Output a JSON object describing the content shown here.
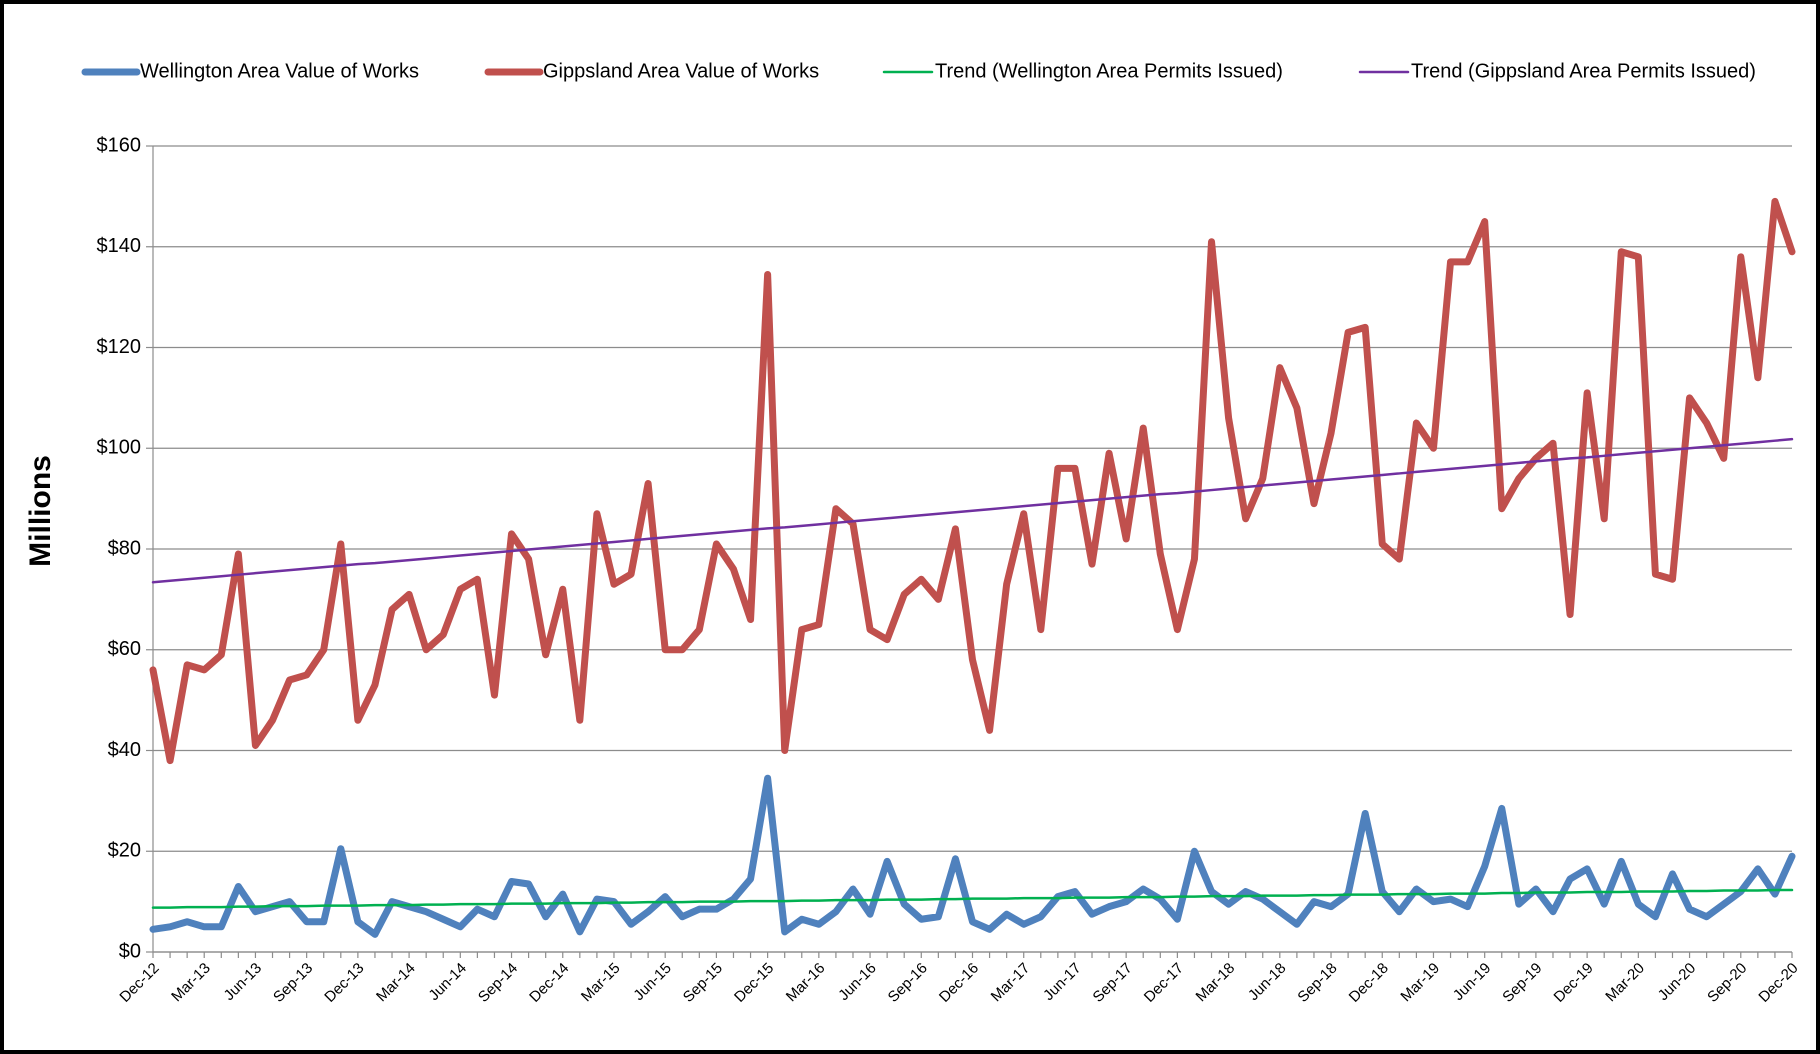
{
  "chart_data": {
    "type": "line",
    "y_label": "Millions",
    "ylim": [
      0,
      160
    ],
    "yticks": [
      {
        "value": 0,
        "label": "$0"
      },
      {
        "value": 20,
        "label": "$20"
      },
      {
        "value": 40,
        "label": "$40"
      },
      {
        "value": 60,
        "label": "$60"
      },
      {
        "value": 80,
        "label": "$80"
      },
      {
        "value": 100,
        "label": "$100"
      },
      {
        "value": 120,
        "label": "$120"
      },
      {
        "value": 140,
        "label": "$140"
      },
      {
        "value": 160,
        "label": "$160"
      }
    ],
    "grid": true,
    "legend": "top",
    "categories": [
      "Dec-12",
      null,
      null,
      "Mar-13",
      null,
      null,
      "Jun-13",
      null,
      null,
      "Sep-13",
      null,
      null,
      "Dec-13",
      null,
      null,
      "Mar-14",
      null,
      null,
      "Jun-14",
      null,
      null,
      "Sep-14",
      null,
      null,
      "Dec-14",
      null,
      null,
      "Mar-15",
      null,
      null,
      "Jun-15",
      null,
      null,
      "Sep-15",
      null,
      null,
      "Dec-15",
      null,
      null,
      "Mar-16",
      null,
      null,
      "Jun-16",
      null,
      null,
      "Sep-16",
      null,
      null,
      "Dec-16",
      null,
      null,
      "Mar-17",
      null,
      null,
      "Jun-17",
      null,
      null,
      "Sep-17",
      null,
      null,
      "Dec-17",
      null,
      null,
      "Mar-18",
      null,
      null,
      "Jun-18",
      null,
      null,
      "Sep-18",
      null,
      null,
      "Dec-18",
      null,
      null,
      "Mar-19",
      null,
      null,
      "Jun-19",
      null,
      null,
      "Sep-19",
      null,
      null,
      "Dec-19",
      null,
      null,
      "Mar-20",
      null,
      null,
      "Jun-20",
      null,
      null,
      "Sep-20",
      null,
      null,
      "Dec-20"
    ],
    "series": [
      {
        "name": "Wellington Area Value of Works",
        "color": "#4f81bd",
        "width": 7,
        "values": [
          4.5,
          5,
          6,
          5,
          5,
          13,
          8,
          9,
          10,
          6,
          6,
          20.5,
          6,
          3.5,
          10,
          9,
          8,
          6.5,
          5,
          8.5,
          7,
          14,
          13.5,
          7,
          11.5,
          4,
          10.5,
          10,
          5.5,
          8,
          11,
          7,
          8.5,
          8.5,
          10.5,
          14.5,
          34.5,
          4,
          6.5,
          5.5,
          8,
          12.5,
          7.5,
          18,
          9.5,
          6.5,
          7,
          18.5,
          6,
          4.5,
          7.5,
          5.5,
          7,
          11,
          12,
          7.5,
          9,
          10,
          12.5,
          10.5,
          6.5,
          20,
          12,
          9.5,
          12,
          10.5,
          8,
          5.5,
          10,
          9,
          11.5,
          27.5,
          12,
          8,
          12.5,
          10,
          10.5,
          9,
          17,
          28.5,
          9.5,
          12.5,
          8,
          14.5,
          16.5,
          9.5,
          18,
          9.5,
          7,
          15.5,
          8.5,
          7,
          9.5,
          12,
          16.5,
          11.5,
          19
        ]
      },
      {
        "name": "Gippsland Area Value of Works",
        "color": "#c0504d",
        "width": 7,
        "values": [
          56,
          38,
          57,
          56,
          59,
          79,
          41,
          46,
          54,
          55,
          60,
          81,
          46,
          53,
          68,
          71,
          60,
          63,
          72,
          74,
          51,
          83,
          78,
          59,
          72,
          46,
          87,
          73,
          75,
          93,
          60,
          60,
          64,
          81,
          76,
          66,
          134.5,
          40,
          64,
          65,
          88,
          85,
          64,
          62,
          71,
          74,
          70,
          84,
          58,
          44,
          73,
          87,
          64,
          96,
          96,
          77,
          99,
          82,
          104,
          79,
          64,
          78,
          141,
          106,
          86,
          94,
          116,
          108,
          89,
          103,
          123,
          124,
          81,
          78,
          105,
          100,
          137,
          137,
          145,
          88,
          94,
          98,
          101,
          67,
          111,
          86,
          139,
          138,
          75,
          74,
          110,
          105,
          98,
          138,
          114,
          149,
          139
        ]
      },
      {
        "name": "Trend (Wellington Area Permits Issued)",
        "color": "#00b050",
        "width": 2.5,
        "values": [
          8.8,
          8.8,
          8.9,
          8.9,
          8.9,
          9.0,
          9.0,
          9.1,
          9.1,
          9.1,
          9.2,
          9.2,
          9.2,
          9.3,
          9.3,
          9.3,
          9.4,
          9.4,
          9.5,
          9.5,
          9.5,
          9.6,
          9.6,
          9.6,
          9.7,
          9.7,
          9.7,
          9.8,
          9.8,
          9.9,
          9.9,
          9.9,
          10.0,
          10.0,
          10.0,
          10.1,
          10.1,
          10.1,
          10.2,
          10.2,
          10.3,
          10.3,
          10.3,
          10.4,
          10.4,
          10.4,
          10.5,
          10.5,
          10.6,
          10.6,
          10.6,
          10.7,
          10.7,
          10.7,
          10.8,
          10.8,
          10.8,
          10.9,
          10.9,
          10.9,
          11.0,
          11.0,
          11.1,
          11.1,
          11.1,
          11.2,
          11.2,
          11.2,
          11.3,
          11.3,
          11.4,
          11.4,
          11.4,
          11.5,
          11.5,
          11.5,
          11.6,
          11.6,
          11.6,
          11.7,
          11.7,
          11.8,
          11.8,
          11.8,
          11.9,
          11.9,
          11.9,
          12.0,
          12.0,
          12.0,
          12.1,
          12.1,
          12.2,
          12.2,
          12.2,
          12.3,
          12.3
        ]
      },
      {
        "name": "Trend (Gippsland Area Permits Issued)",
        "color": "#7030a0",
        "width": 2.5,
        "values": [
          73.4,
          73.7,
          74.0,
          74.3,
          74.6,
          74.9,
          75.2,
          75.5,
          75.8,
          76.1,
          76.4,
          76.7,
          77.0,
          77.2,
          77.5,
          77.8,
          78.1,
          78.4,
          78.7,
          79.0,
          79.3,
          79.6,
          79.9,
          80.2,
          80.5,
          80.8,
          81.1,
          81.4,
          81.7,
          82.0,
          82.3,
          82.6,
          82.9,
          83.2,
          83.5,
          83.8,
          84.1,
          84.3,
          84.6,
          84.9,
          85.2,
          85.5,
          85.8,
          86.1,
          86.4,
          86.7,
          87.0,
          87.3,
          87.6,
          87.9,
          88.2,
          88.5,
          88.8,
          89.1,
          89.4,
          89.7,
          90.0,
          90.3,
          90.6,
          90.9,
          91.1,
          91.4,
          91.7,
          92.0,
          92.3,
          92.6,
          92.9,
          93.2,
          93.5,
          93.8,
          94.1,
          94.4,
          94.7,
          95.0,
          95.3,
          95.6,
          95.9,
          96.2,
          96.5,
          96.8,
          97.1,
          97.4,
          97.7,
          98.0,
          98.2,
          98.5,
          98.8,
          99.1,
          99.4,
          99.7,
          100.0,
          100.3,
          100.6,
          100.9,
          101.2,
          101.5,
          101.8
        ]
      }
    ]
  }
}
